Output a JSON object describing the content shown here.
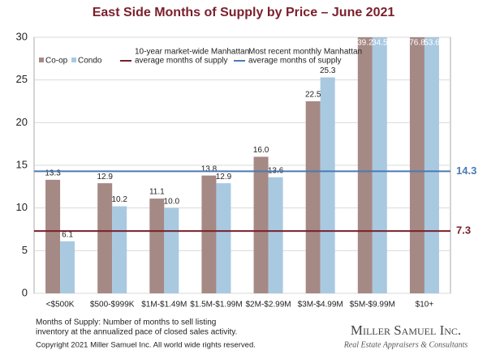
{
  "chart_data": {
    "type": "bar",
    "title": "East Side Months of Supply by Price – June 2021",
    "categories": [
      "<$500K",
      "$500-$999K",
      "$1M-$1.49M",
      "$1.5M-$1.99M",
      "$2M-$2.99M",
      "$3M-$4.99M",
      "$5M-$9.99M",
      "$10+"
    ],
    "series": [
      {
        "name": "Co-op",
        "color": "#a58985",
        "values": [
          13.3,
          12.9,
          11.1,
          13.8,
          16.0,
          22.5,
          39.2,
          76.8
        ],
        "value_labels": [
          "13.3",
          "12.9",
          "11.1",
          "13.8",
          "16.0",
          "22.5",
          "39.2",
          "76.8"
        ]
      },
      {
        "name": "Condo",
        "color": "#a9c9e1",
        "values": [
          6.1,
          10.2,
          10.0,
          12.9,
          13.6,
          25.3,
          34.5,
          53.6
        ],
        "value_labels": [
          "6.1",
          "10.2",
          "10.0",
          "12.9",
          "13.6",
          "25.3",
          "34.5",
          "53.6"
        ]
      }
    ],
    "ylim": [
      0,
      30
    ],
    "yticks": [
      0,
      5,
      10,
      15,
      20,
      25,
      30
    ],
    "grid": true,
    "reference_lines": [
      {
        "label": [
          "10-year  market-wide Manhattan",
          "average months of supply"
        ],
        "value": 7.3,
        "color": "#7a1f2b"
      },
      {
        "label": [
          "Most recent monthly Manhattan",
          "average months of supply"
        ],
        "value": 14.3,
        "color": "#4a7ab5"
      }
    ]
  },
  "footnote": [
    "Months of Supply: Number of months to sell listing",
    "inventory at the annualized pace of closed sales activity."
  ],
  "copyright": "Copyright 2021 Miller Samuel Inc.  All world wide rights reserved.",
  "logo": {
    "name": "Miller Samuel Inc.",
    "tagline": "Real Estate Appraisers & Consultants"
  }
}
